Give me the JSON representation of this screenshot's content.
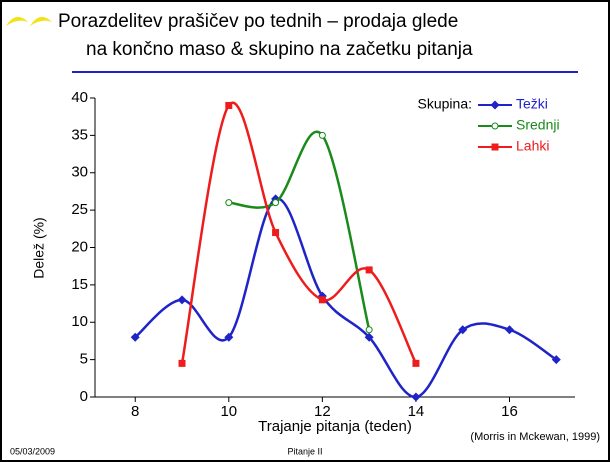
{
  "title": [
    "Porazdelitev prašičev po tednih – prodaja glede",
    "na končno maso & skupino na začetku pitanja"
  ],
  "chart_data": {
    "type": "line",
    "smooth": true,
    "ylabel": "Delež (%)",
    "xlabel": "Trajanje pitanja (teden)",
    "legend_title": "Skupina:",
    "legend": "upper right",
    "xlim": [
      7.14,
      17.4
    ],
    "xticks": [
      8,
      10,
      12,
      14,
      16
    ],
    "ylim": [
      0,
      40
    ],
    "yticks": [
      0,
      5,
      10,
      15,
      20,
      25,
      30,
      35,
      40
    ],
    "series": [
      {
        "name": "Težki",
        "color": "#1f24c8",
        "marker": "diamond",
        "x": [
          8,
          9,
          10,
          11,
          12,
          13,
          14,
          15,
          16,
          17
        ],
        "values": [
          8,
          13,
          8,
          26.5,
          13.5,
          8,
          0,
          9,
          9,
          5
        ]
      },
      {
        "name": "Srednji",
        "color": "#1a8a1a",
        "marker": "circle",
        "x": [
          10,
          11,
          12,
          13
        ],
        "values": [
          26,
          26,
          35,
          9
        ]
      },
      {
        "name": "Lahki",
        "color": "#ee1c1c",
        "marker": "square",
        "x": [
          9,
          10,
          11,
          12,
          13,
          14
        ],
        "values": [
          4.5,
          39,
          22,
          13,
          17,
          4.5
        ]
      }
    ]
  },
  "source": "(Morris in Mckewan, 1999)",
  "footer": {
    "date": "05/03/2009",
    "center": "Pitanje II"
  }
}
